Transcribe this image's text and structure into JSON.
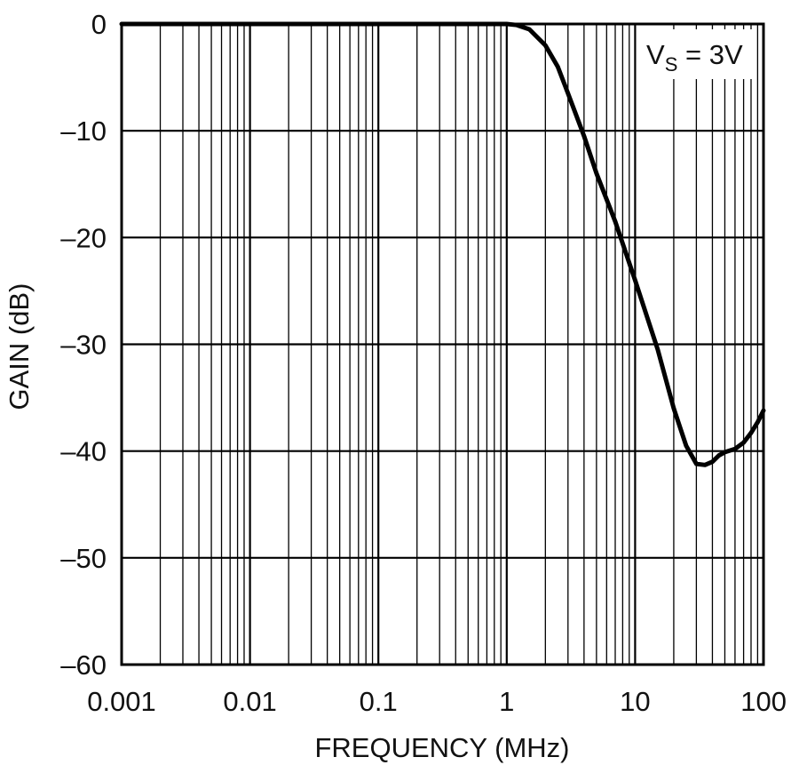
{
  "chart_data": {
    "type": "line",
    "xlabel": "FREQUENCY (MHz)",
    "ylabel": "GAIN (dB)",
    "x_scale": "log",
    "xlim": [
      0.001,
      100
    ],
    "ylim": [
      -60,
      0
    ],
    "grid": true,
    "x_ticks": [
      "0.001",
      "0.01",
      "0.1",
      "1",
      "10",
      "100"
    ],
    "y_ticks": [
      "0",
      "–10",
      "–20",
      "–30",
      "–40",
      "–50",
      "–60"
    ],
    "annotation": {
      "main": "V",
      "sub": "S",
      "rest": " = 3V"
    },
    "series": [
      {
        "line_color": "#000000",
        "x": [
          0.001,
          0.01,
          0.1,
          0.5,
          1,
          1.2,
          1.5,
          2,
          2.5,
          3,
          4,
          5,
          7,
          10,
          15,
          20,
          25,
          30,
          35,
          40,
          45,
          50,
          60,
          70,
          80,
          90,
          100
        ],
        "y": [
          0,
          0,
          0,
          0,
          0,
          -0.1,
          -0.5,
          -2,
          -4,
          -6.5,
          -10.5,
          -14,
          -18.5,
          -24,
          -30.5,
          -36,
          -39.5,
          -41.2,
          -41.3,
          -41,
          -40.4,
          -40.1,
          -39.8,
          -39.2,
          -38.3,
          -37.3,
          -36.2
        ]
      }
    ]
  }
}
